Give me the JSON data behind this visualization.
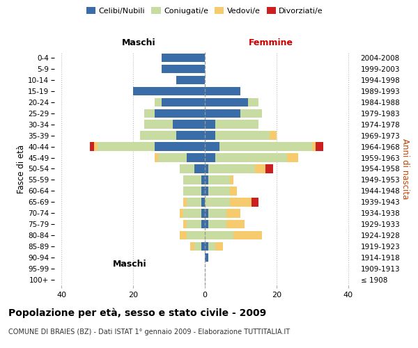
{
  "age_groups": [
    "100+",
    "95-99",
    "90-94",
    "85-89",
    "80-84",
    "75-79",
    "70-74",
    "65-69",
    "60-64",
    "55-59",
    "50-54",
    "45-49",
    "40-44",
    "35-39",
    "30-34",
    "25-29",
    "20-24",
    "15-19",
    "10-14",
    "5-9",
    "0-4"
  ],
  "birth_years": [
    "≤ 1908",
    "1909-1913",
    "1914-1918",
    "1919-1923",
    "1924-1928",
    "1929-1933",
    "1934-1938",
    "1939-1943",
    "1944-1948",
    "1949-1953",
    "1954-1958",
    "1959-1963",
    "1964-1968",
    "1969-1973",
    "1974-1978",
    "1979-1983",
    "1984-1988",
    "1989-1993",
    "1994-1998",
    "1999-2003",
    "2004-2008"
  ],
  "male": {
    "celibi": [
      0,
      0,
      0,
      1,
      0,
      1,
      1,
      1,
      1,
      1,
      3,
      5,
      14,
      8,
      9,
      14,
      12,
      20,
      8,
      12,
      12
    ],
    "coniugati": [
      0,
      0,
      0,
      2,
      5,
      4,
      5,
      4,
      5,
      5,
      4,
      8,
      16,
      10,
      8,
      3,
      2,
      0,
      0,
      0,
      0
    ],
    "vedovi": [
      0,
      0,
      0,
      1,
      2,
      1,
      1,
      1,
      0,
      0,
      0,
      1,
      1,
      0,
      0,
      0,
      0,
      0,
      0,
      0,
      0
    ],
    "divorziati": [
      0,
      0,
      0,
      0,
      0,
      0,
      0,
      0,
      0,
      0,
      0,
      0,
      1,
      0,
      0,
      0,
      0,
      0,
      0,
      0,
      0
    ]
  },
  "female": {
    "nubili": [
      0,
      0,
      1,
      1,
      0,
      1,
      1,
      0,
      1,
      1,
      1,
      3,
      4,
      3,
      3,
      10,
      12,
      10,
      0,
      0,
      0
    ],
    "coniugate": [
      0,
      0,
      0,
      2,
      8,
      5,
      5,
      7,
      6,
      6,
      13,
      20,
      26,
      15,
      12,
      6,
      3,
      0,
      0,
      0,
      0
    ],
    "vedove": [
      0,
      0,
      0,
      2,
      8,
      5,
      4,
      6,
      2,
      1,
      3,
      3,
      1,
      2,
      0,
      0,
      0,
      0,
      0,
      0,
      0
    ],
    "divorziate": [
      0,
      0,
      0,
      0,
      0,
      0,
      0,
      2,
      0,
      0,
      2,
      0,
      2,
      0,
      0,
      0,
      0,
      0,
      0,
      0,
      0
    ]
  },
  "colors": {
    "celibi": "#3a6da8",
    "coniugati": "#c8dba0",
    "vedovi": "#f6cb6e",
    "divorziati": "#cc2020"
  },
  "xlim": 42,
  "title": "Popolazione per età, sesso e stato civile - 2009",
  "subtitle": "COMUNE DI BRAIES (BZ) - Dati ISTAT 1° gennaio 2009 - Elaborazione TUTTITALIA.IT",
  "ylabel_left": "Fasce di età",
  "ylabel_right": "Anni di nascita",
  "xlabel_left": "Maschi",
  "xlabel_right": "Femmine",
  "bg_color": "#ffffff"
}
